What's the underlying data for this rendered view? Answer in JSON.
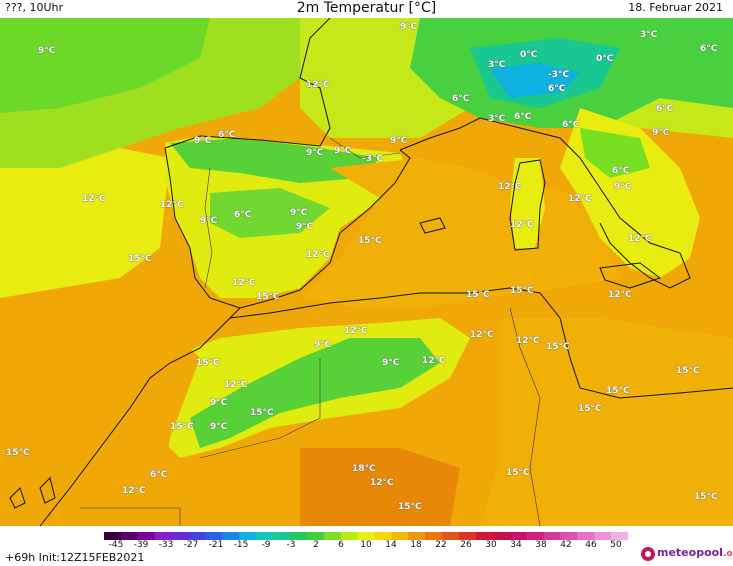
{
  "header": {
    "left": "???, 10Uhr",
    "title": "2m Temperatur [°C]",
    "date": "18. Februar 2021"
  },
  "footer": {
    "forecast": "+69h Init:12Z15FEB2021",
    "logo_text": "meteopool",
    "logo_suffix": ".org"
  },
  "legend": {
    "ticks": [
      "-45",
      "-39",
      "-33",
      "-27",
      "-21",
      "-15",
      "-9",
      "-3",
      "2",
      "6",
      "10",
      "14",
      "18",
      "22",
      "26",
      "30",
      "34",
      "38",
      "42",
      "46",
      "50"
    ],
    "colors": [
      "#3a0040",
      "#5c0070",
      "#7a00a0",
      "#8a20c8",
      "#6a2ad8",
      "#4a40e0",
      "#2a60e8",
      "#1a88e8",
      "#10b0e0",
      "#10c8c0",
      "#18c890",
      "#20c860",
      "#40d040",
      "#78e020",
      "#b8ec10",
      "#e8f010",
      "#f4d808",
      "#f0b808",
      "#ec9808",
      "#e87808",
      "#e05818",
      "#d83828",
      "#d01838",
      "#c8104c",
      "#c81068",
      "#d02080",
      "#d83898",
      "#e050b0",
      "#e870c8",
      "#f090d8",
      "#f4b0e4"
    ]
  },
  "labels": [
    {
      "text": "9°C",
      "color": "land"
    },
    {
      "text": "9°C",
      "color": "land"
    },
    {
      "text": "12°C",
      "color": "land"
    },
    {
      "text": "0°C",
      "color": "land"
    },
    {
      "text": "3°C",
      "color": "land"
    },
    {
      "text": "6°C",
      "color": "land"
    },
    {
      "text": "3°C",
      "color": "land"
    },
    {
      "text": "-3°C",
      "color": "land"
    },
    {
      "text": "0°C",
      "color": "land"
    },
    {
      "text": "6°C",
      "color": "land"
    },
    {
      "text": "6°C",
      "color": "land"
    },
    {
      "text": "6°C",
      "color": "land"
    },
    {
      "text": "9°C",
      "color": "land"
    },
    {
      "text": "3°C",
      "color": "land"
    },
    {
      "text": "6°C",
      "color": "land"
    },
    {
      "text": "6°C",
      "color": "land"
    },
    {
      "text": "9°C",
      "color": "land"
    },
    {
      "text": "6°C",
      "color": "land"
    },
    {
      "text": "9°C",
      "color": "land"
    },
    {
      "text": "9°C",
      "color": "land"
    },
    {
      "text": "9°C",
      "color": "land"
    },
    {
      "text": "-3°C",
      "color": "land"
    },
    {
      "text": "9°C",
      "color": "land"
    },
    {
      "text": "12°C",
      "color": "land"
    },
    {
      "text": "12°C",
      "color": "land"
    },
    {
      "text": "6°C",
      "color": "land"
    },
    {
      "text": "9°C",
      "color": "land"
    },
    {
      "text": "12°C",
      "color": "land"
    },
    {
      "text": "12°C",
      "color": "land"
    },
    {
      "text": "12°C",
      "color": "land"
    },
    {
      "text": "9°C",
      "color": "land"
    },
    {
      "text": "6°C",
      "color": "land"
    },
    {
      "text": "9°C",
      "color": "land"
    },
    {
      "text": "12°C",
      "color": "land"
    },
    {
      "text": "15°C",
      "color": "land"
    },
    {
      "text": "15°C",
      "color": "land"
    },
    {
      "text": "12°C",
      "color": "land"
    },
    {
      "text": "12°C",
      "color": "land"
    },
    {
      "text": "12°C",
      "color": "land"
    },
    {
      "text": "12°C",
      "color": "land"
    },
    {
      "text": "15°C",
      "color": "land"
    },
    {
      "text": "15°C",
      "color": "land"
    },
    {
      "text": "15°C",
      "color": "land"
    },
    {
      "text": "12°C",
      "color": "land"
    },
    {
      "text": "9°C",
      "color": "land"
    },
    {
      "text": "9°C",
      "color": "land"
    },
    {
      "text": "12°C",
      "color": "land"
    },
    {
      "text": "12°C",
      "color": "land"
    },
    {
      "text": "15°C",
      "color": "land"
    },
    {
      "text": "15°C",
      "color": "land"
    },
    {
      "text": "15°C",
      "color": "land"
    },
    {
      "text": "9°C",
      "color": "land"
    },
    {
      "text": "12°C",
      "color": "land"
    },
    {
      "text": "15°C",
      "color": "land"
    },
    {
      "text": "15°C",
      "color": "land"
    },
    {
      "text": "15°C",
      "color": "land"
    },
    {
      "text": "15°C",
      "color": "land"
    },
    {
      "text": "9°C",
      "color": "land"
    },
    {
      "text": "15°C",
      "color": "land"
    },
    {
      "text": "6°C",
      "color": "land"
    },
    {
      "text": "18°C",
      "color": "land"
    },
    {
      "text": "12°C",
      "color": "land"
    },
    {
      "text": "12°C",
      "color": "land"
    },
    {
      "text": "15°C",
      "color": "land"
    },
    {
      "text": "15°C",
      "color": "land"
    },
    {
      "text": "15°C",
      "color": "land"
    },
    {
      "text": "15°C",
      "color": "land"
    },
    {
      "text": "18°C",
      "color": "land"
    }
  ]
}
